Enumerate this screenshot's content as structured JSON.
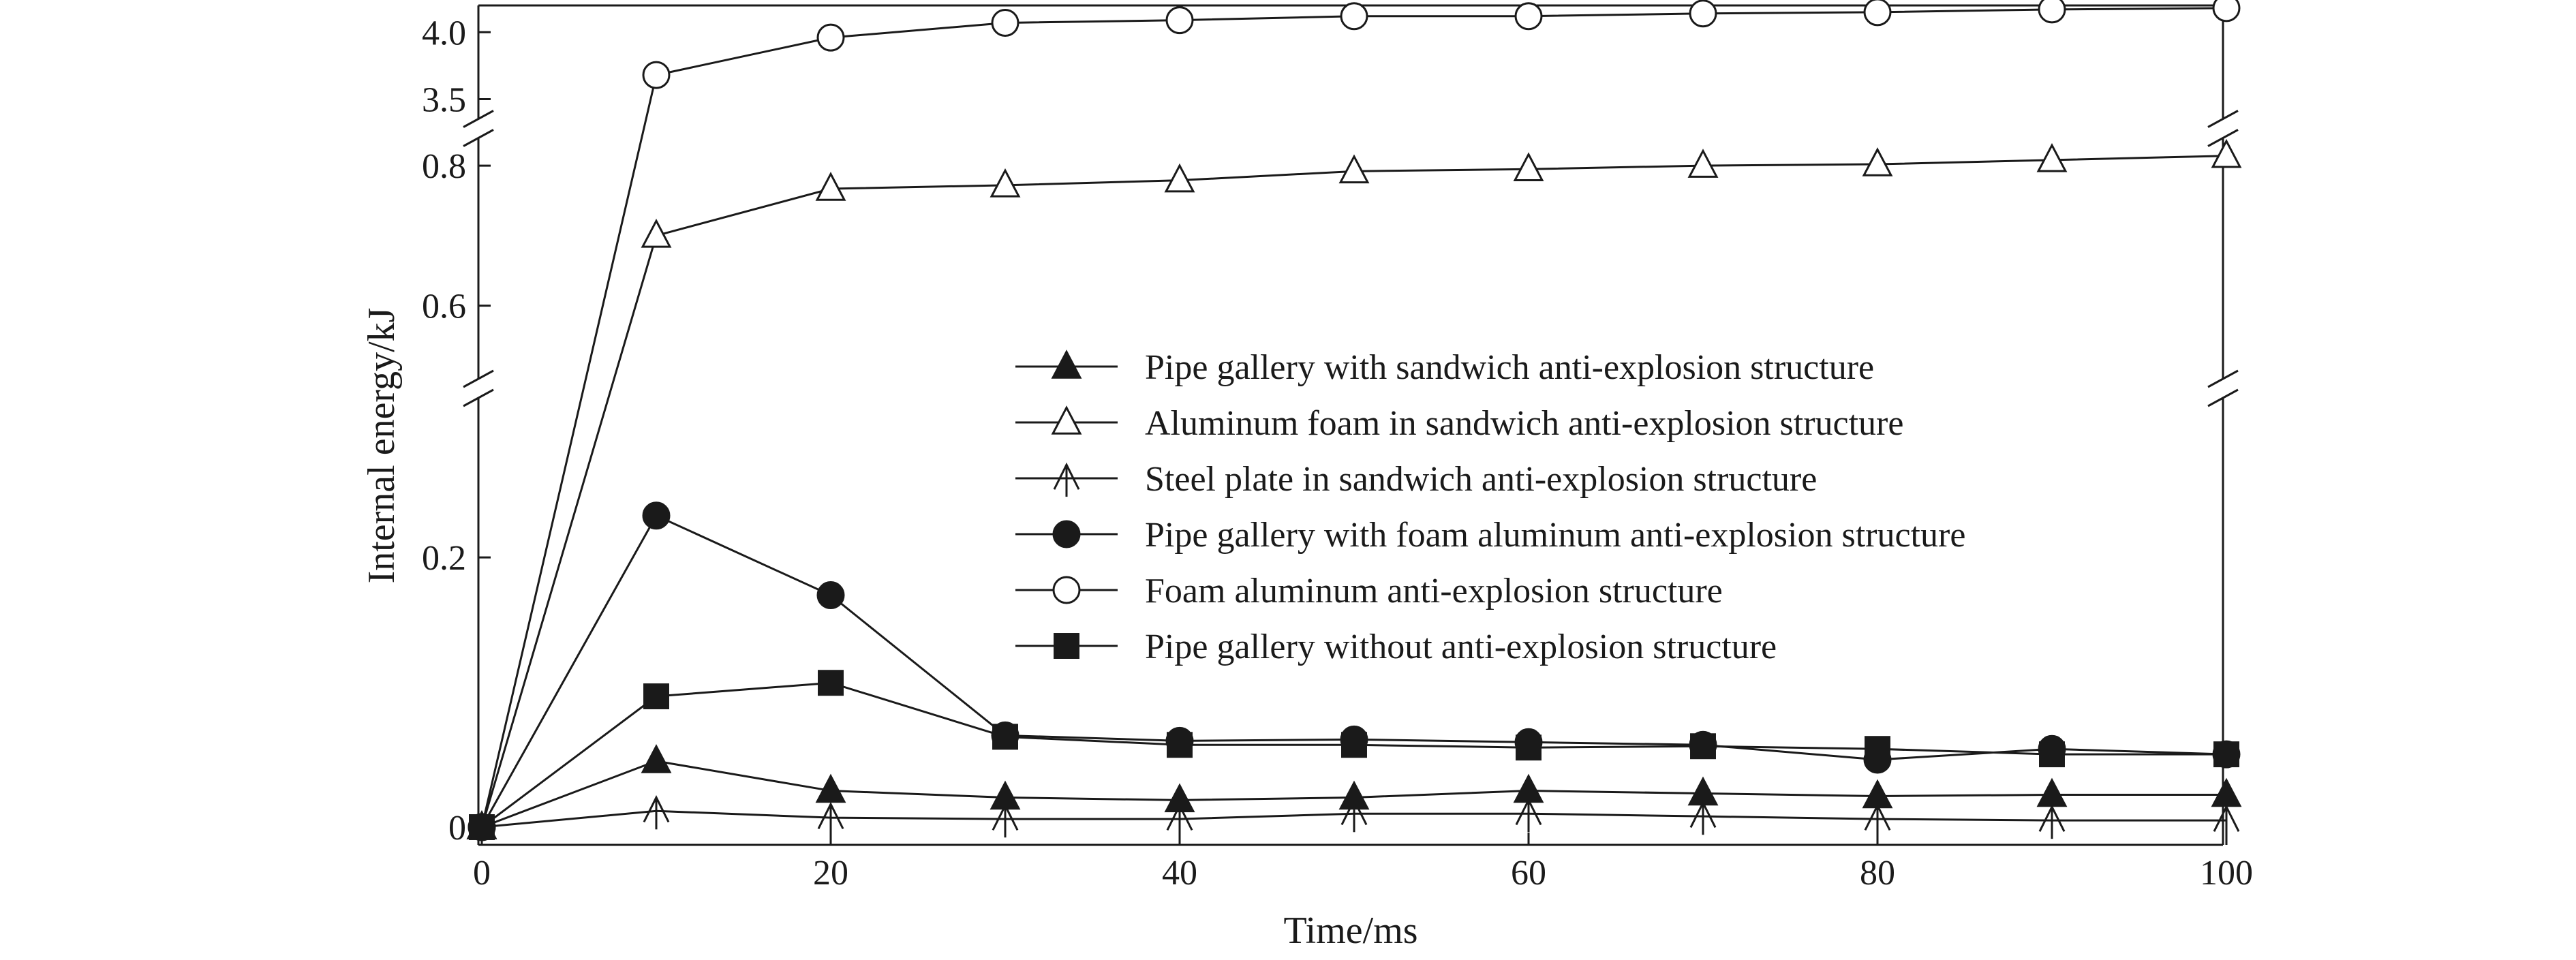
{
  "chart_data": {
    "type": "line",
    "xlabel": "Time/ms",
    "ylabel": "Internal energy/kJ",
    "xlim": [
      0,
      100
    ],
    "x_ticks": [
      0,
      20,
      40,
      60,
      80,
      100
    ],
    "y_scale": "broken",
    "y_segments": [
      {
        "range": [
          0,
          0.29
        ],
        "ticks": [
          {
            "value": 0,
            "label": "0"
          },
          {
            "value": 0.2,
            "label": "0.2"
          }
        ]
      },
      {
        "range": [
          0.55,
          0.84
        ],
        "ticks": [
          {
            "value": 0.6,
            "label": "0.6"
          },
          {
            "value": 0.8,
            "label": "0.8"
          }
        ]
      },
      {
        "range": [
          3.35,
          4.2
        ],
        "ticks": [
          {
            "value": 3.5,
            "label": "3.5"
          },
          {
            "value": 4.0,
            "label": "4.0"
          }
        ]
      }
    ],
    "x": [
      0,
      10,
      20,
      30,
      40,
      50,
      60,
      70,
      80,
      90,
      100
    ],
    "legend_position": "center-right",
    "series": [
      {
        "name": "Pipe gallery with sandwich anti-explosion structure",
        "marker": "triangle-filled",
        "values": [
          0,
          0.049,
          0.027,
          0.022,
          0.02,
          0.022,
          0.027,
          0.025,
          0.023,
          0.024,
          0.024
        ]
      },
      {
        "name": "Aluminum foam in sandwich anti-explosion structure",
        "marker": "triangle-open",
        "values": [
          0,
          0.7,
          0.767,
          0.772,
          0.779,
          0.792,
          0.795,
          0.8,
          0.802,
          0.808,
          0.814
        ]
      },
      {
        "name": "Steel plate in sandwich anti-explosion structure",
        "marker": "triangle-tick",
        "values": [
          0,
          0.012,
          0.007,
          0.006,
          0.006,
          0.01,
          0.01,
          0.008,
          0.006,
          0.005,
          0.005
        ]
      },
      {
        "name": "Pipe gallery with foam aluminum anti-explosion structure",
        "marker": "circle-filled",
        "values": [
          0,
          0.231,
          0.172,
          0.068,
          0.064,
          0.065,
          0.063,
          0.061,
          0.05,
          0.058,
          0.054
        ]
      },
      {
        "name": "Foam aluminum anti-explosion structure",
        "marker": "circle-open",
        "values": [
          0,
          3.68,
          3.96,
          4.07,
          4.09,
          4.12,
          4.12,
          4.14,
          4.15,
          4.17,
          4.18
        ]
      },
      {
        "name": "Pipe gallery without anti-explosion structure",
        "marker": "square-filled",
        "values": [
          0,
          0.097,
          0.107,
          0.067,
          0.061,
          0.061,
          0.059,
          0.06,
          0.058,
          0.054,
          0.054
        ]
      }
    ]
  }
}
